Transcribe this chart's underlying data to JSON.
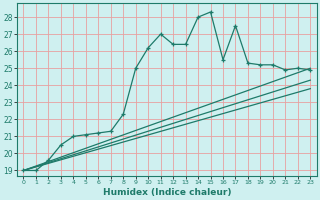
{
  "title": "",
  "xlabel": "Humidex (Indice chaleur)",
  "background_color": "#cff0f0",
  "grid_color": "#e8a0a0",
  "line_color": "#1e7b6a",
  "xlim": [
    -0.5,
    23.5
  ],
  "ylim": [
    18.7,
    28.8
  ],
  "xticks": [
    0,
    1,
    2,
    3,
    4,
    5,
    6,
    7,
    8,
    9,
    10,
    11,
    12,
    13,
    14,
    15,
    16,
    17,
    18,
    19,
    20,
    21,
    22,
    23
  ],
  "yticks": [
    19,
    20,
    21,
    22,
    23,
    24,
    25,
    26,
    27,
    28
  ],
  "main_x": [
    0,
    1,
    2,
    3,
    4,
    5,
    6,
    7,
    8,
    9,
    10,
    11,
    12,
    13,
    14,
    15,
    16,
    17,
    18,
    19,
    20,
    21,
    22,
    23
  ],
  "main_y": [
    19,
    19,
    19.6,
    20.5,
    21.0,
    21.1,
    21.2,
    21.3,
    22.3,
    25.0,
    26.2,
    27.0,
    26.4,
    26.4,
    28.0,
    28.3,
    25.5,
    27.5,
    25.3,
    25.2,
    25.2,
    24.9,
    25.0,
    24.9
  ],
  "line2_x": [
    0,
    23
  ],
  "line2_y": [
    19,
    25.0
  ],
  "line3_x": [
    0,
    23
  ],
  "line3_y": [
    19,
    24.3
  ],
  "line4_x": [
    0,
    23
  ],
  "line4_y": [
    19,
    23.8
  ]
}
